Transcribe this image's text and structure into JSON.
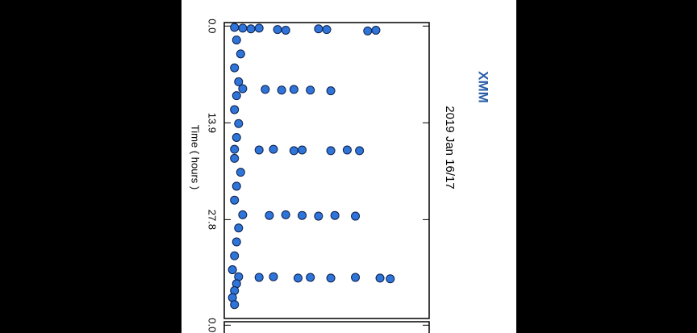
{
  "chart_data": [
    {
      "type": "scatter",
      "title": "XMM",
      "subtitle": "2019 Jan 16/17",
      "x_label": "Time ( hours )",
      "color": "#2f74d8",
      "x": [
        0.2,
        0.3,
        0.4,
        0.3,
        0.5,
        0.6,
        0.4,
        0.5,
        0.7,
        0.6,
        9.0,
        9.1,
        9.2,
        9.1,
        9.2,
        9.3,
        17.7,
        17.8,
        17.7,
        17.9,
        17.8,
        17.9,
        17.8,
        17.9,
        27.1,
        27.2,
        27.1,
        27.2,
        27.3,
        27.2,
        27.3,
        36.0,
        36.1,
        36.0,
        36.2,
        36.1,
        36.2,
        36.1,
        36.2,
        36.3,
        2,
        4,
        6,
        8,
        10,
        12,
        14,
        16,
        19,
        21,
        23,
        25,
        29,
        31,
        33,
        35,
        37,
        38,
        39,
        40
      ],
      "values": [
        0.5,
        0.9,
        1.3,
        1.7,
        2.6,
        3.0,
        4.6,
        5.0,
        7.0,
        7.4,
        0.9,
        2.0,
        2.8,
        3.4,
        4.2,
        5.2,
        0.5,
        1.7,
        2.4,
        3.4,
        3.8,
        5.2,
        6.0,
        6.6,
        0.9,
        2.2,
        3.0,
        3.8,
        4.6,
        5.4,
        6.4,
        0.7,
        1.7,
        2.4,
        3.6,
        4.2,
        5.2,
        6.4,
        7.6,
        8.1,
        0.6,
        0.8,
        0.5,
        0.7,
        0.6,
        0.5,
        0.7,
        0.6,
        0.5,
        0.8,
        0.6,
        0.5,
        0.7,
        0.6,
        0.5,
        0.4,
        0.6,
        0.5,
        0.4,
        0.5
      ],
      "xlim": [
        -0.5,
        42
      ],
      "xticks": [
        {
          "value": 0,
          "label": "0.0"
        },
        13.9,
        27.8
      ],
      "ylim": [
        0,
        10
      ]
    },
    {
      "type": "scatter",
      "xlim": [
        -0.5,
        42
      ],
      "xticks": [
        {
          "value": 0,
          "label": "0.0"
        }
      ]
    }
  ]
}
